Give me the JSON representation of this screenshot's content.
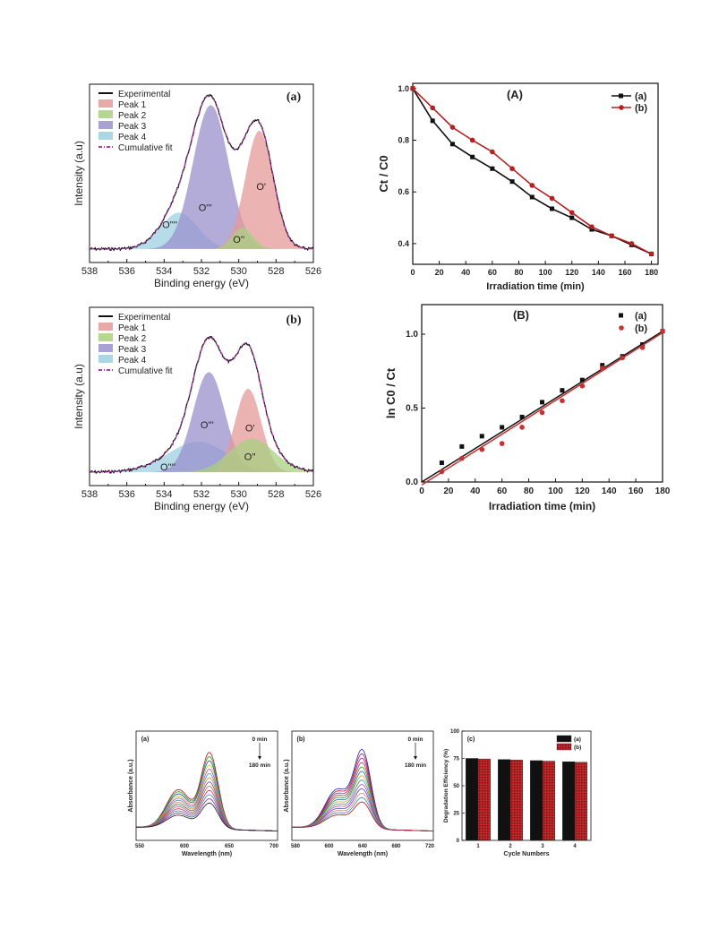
{
  "chart_data": [
    {
      "id": "xps_a",
      "type": "area",
      "panel_label": "(a)",
      "xlabel": "Binding energy (eV)",
      "ylabel": "Intensity (a.u)",
      "xlim": [
        538,
        526
      ],
      "xticks": [
        "538",
        "536",
        "534",
        "532",
        "530",
        "528",
        "526"
      ],
      "legend": [
        "Experimental",
        "Peak 1",
        "Peak 2",
        "Peak 3",
        "Peak 4",
        "Cumulative fit"
      ],
      "peaks": [
        {
          "name": "Peak 1",
          "label": "O'",
          "center": 528.9,
          "height": 0.78,
          "width": 0.75,
          "color": "#e69a9a"
        },
        {
          "name": "Peak 2",
          "label": "O''",
          "center": 529.8,
          "height": 0.14,
          "width": 0.55,
          "color": "#a8d080"
        },
        {
          "name": "Peak 3",
          "label": "O'''",
          "center": 531.5,
          "height": 0.95,
          "width": 0.95,
          "color": "#9a90cc"
        },
        {
          "name": "Peak 4",
          "label": "O''''",
          "center": 533.2,
          "height": 0.24,
          "width": 1.0,
          "color": "#9cd0e0"
        }
      ],
      "peak_labels": [
        "O'",
        "O''",
        "O'''",
        "O''''"
      ]
    },
    {
      "id": "xps_b",
      "type": "area",
      "panel_label": "(b)",
      "xlabel": "Binding energy (eV)",
      "ylabel": "Intensity (a.u)",
      "xlim": [
        538,
        526
      ],
      "xticks": [
        "538",
        "536",
        "534",
        "532",
        "530",
        "528",
        "526"
      ],
      "legend": [
        "Experimental",
        "Peak 1",
        "Peak 2",
        "Peak 3",
        "Peak 4",
        "Cumulative fit"
      ],
      "peaks": [
        {
          "name": "Peak 1",
          "label": "O'",
          "center": 529.5,
          "height": 0.55,
          "width": 0.7,
          "color": "#e69a9a"
        },
        {
          "name": "Peak 2",
          "label": "O''",
          "center": 529.3,
          "height": 0.22,
          "width": 1.2,
          "color": "#a8d080"
        },
        {
          "name": "Peak 3",
          "label": "O'''",
          "center": 531.6,
          "height": 0.66,
          "width": 0.85,
          "color": "#9a90cc"
        },
        {
          "name": "Peak 4",
          "label": "O''''",
          "center": 532.2,
          "height": 0.2,
          "width": 1.6,
          "color": "#9cd0e0"
        }
      ],
      "peak_labels": [
        "O'",
        "O''",
        "O'''",
        "O''''"
      ]
    },
    {
      "id": "kinetics_A",
      "type": "line",
      "panel_label": "(A)",
      "xlabel": "Irradiation time (min)",
      "ylabel": "Ct / C0",
      "xlim": [
        0,
        185
      ],
      "ylim": [
        0.32,
        1.02
      ],
      "xticks": [
        0,
        20,
        40,
        60,
        80,
        100,
        120,
        140,
        160,
        180
      ],
      "yticks": [
        0.4,
        0.6,
        0.8,
        1.0
      ],
      "x": [
        0,
        15,
        30,
        45,
        60,
        75,
        90,
        105,
        120,
        135,
        150,
        165,
        180
      ],
      "series": [
        {
          "name": "(a)",
          "color": "#111111",
          "marker": "square",
          "values": [
            1.0,
            0.875,
            0.785,
            0.735,
            0.69,
            0.64,
            0.58,
            0.535,
            0.5,
            0.455,
            0.43,
            0.395,
            0.36
          ]
        },
        {
          "name": "(b)",
          "color": "#b52020",
          "marker": "circle",
          "values": [
            1.0,
            0.925,
            0.85,
            0.8,
            0.755,
            0.69,
            0.625,
            0.575,
            0.52,
            0.465,
            0.43,
            0.4,
            0.36
          ]
        }
      ]
    },
    {
      "id": "kinetics_B",
      "type": "scatter",
      "panel_label": "(B)",
      "xlabel": "Irradiation time (min)",
      "ylabel": "ln C0 / Ct",
      "xlim": [
        0,
        180
      ],
      "ylim": [
        0,
        1.2
      ],
      "xticks": [
        0,
        20,
        40,
        60,
        80,
        100,
        120,
        140,
        160,
        180
      ],
      "yticks": [
        0.0,
        0.5,
        1.0
      ],
      "x": [
        15,
        30,
        45,
        60,
        75,
        90,
        105,
        120,
        135,
        150,
        165,
        180
      ],
      "series": [
        {
          "name": "(a)",
          "color": "#111111",
          "marker": "square",
          "values": [
            0.13,
            0.24,
            0.31,
            0.37,
            0.44,
            0.54,
            0.62,
            0.69,
            0.79,
            0.85,
            0.93,
            1.02
          ],
          "fit": [
            0,
            0.0,
            180,
            1.02
          ]
        },
        {
          "name": "(b)",
          "color": "#c83030",
          "marker": "circle",
          "values": [
            0.07,
            0.16,
            0.22,
            0.26,
            0.37,
            0.47,
            0.55,
            0.65,
            0.77,
            0.84,
            0.91,
            1.02
          ],
          "fit": [
            0,
            -0.02,
            180,
            1.01
          ]
        }
      ]
    },
    {
      "id": "uv_a",
      "type": "line",
      "panel_label": "(a)",
      "xlabel": "Wavelength (nm)",
      "ylabel": "Absorbance (a.u.)",
      "xticks": [
        "550",
        "600",
        "650",
        "700"
      ],
      "annotation_top": "0 min",
      "annotation_bottom": "180 min",
      "curve_count": 13,
      "colors": [
        "#b01010",
        "#2a9a2a",
        "#1a4ec0",
        "#d8c020",
        "#c040c0",
        "#30a0b0",
        "#e08020",
        "#5050a0",
        "#a07040",
        "#c03060",
        "#3080d0",
        "#803080",
        "#202020"
      ]
    },
    {
      "id": "uv_b",
      "type": "line",
      "panel_label": "(b)",
      "xlabel": "Wavelength (nm)",
      "ylabel": "Absorbance (a.u.)",
      "xticks": [
        "580",
        "600",
        "640",
        "680",
        "720"
      ],
      "annotation_top": "0 min",
      "annotation_bottom": "180 min",
      "curve_count": 13,
      "colors": [
        "#1a2aa0",
        "#b01040",
        "#a020a0",
        "#c03030",
        "#2a9a2a",
        "#3060c0",
        "#d8a020",
        "#20a0a0",
        "#c040c0",
        "#5050a0",
        "#e08060",
        "#3080d0",
        "#b01010"
      ]
    },
    {
      "id": "cycles_c",
      "type": "bar",
      "panel_label": "(c)",
      "xlabel": "Cycle Numbers",
      "ylabel": "Degradation Efficiency (%)",
      "categories": [
        "1",
        "2",
        "3",
        "4"
      ],
      "ylim": [
        0,
        100
      ],
      "yticks": [
        "0",
        "25",
        "50",
        "75",
        "100"
      ],
      "series": [
        {
          "name": "(a)",
          "color": "#111111",
          "values": [
            75,
            74,
            73,
            72
          ]
        },
        {
          "name": "(b)",
          "color": "#c0282a",
          "values": [
            74.5,
            73.5,
            72.5,
            71.5
          ]
        }
      ]
    }
  ]
}
